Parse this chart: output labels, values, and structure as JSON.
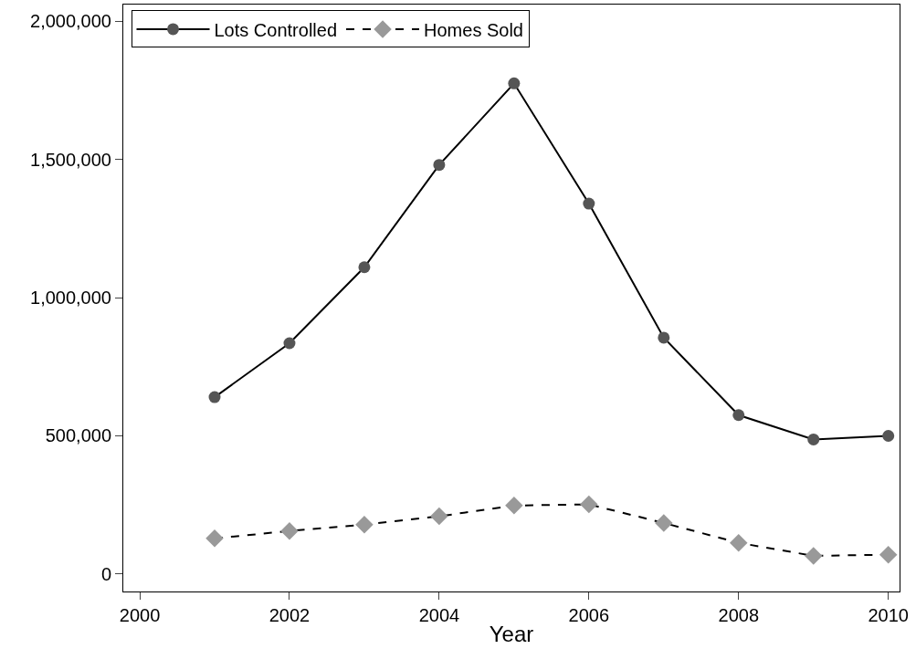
{
  "chart_data": {
    "type": "line",
    "xlabel": "Year",
    "x": [
      2001,
      2002,
      2003,
      2004,
      2005,
      2006,
      2007,
      2008,
      2009,
      2010
    ],
    "series": [
      {
        "name": "Lots Controlled",
        "color": "#555555",
        "marker": "circle",
        "line_style": "solid",
        "values": [
          640000,
          835000,
          1110000,
          1480000,
          1775000,
          1340000,
          855000,
          575000,
          487000,
          500000
        ]
      },
      {
        "name": "Homes Sold",
        "color": "#999999",
        "marker": "diamond",
        "line_style": "dashed",
        "values": [
          129000,
          156000,
          179000,
          209000,
          248000,
          252000,
          185000,
          113000,
          66000,
          70000
        ]
      }
    ],
    "xlim": [
      1999.78,
      2010.15
    ],
    "xticks": [
      2000,
      2002,
      2004,
      2006,
      2008,
      2010
    ],
    "ylim": [
      -63000,
      2060000
    ],
    "yticks": [
      {
        "value": 0,
        "label": "0"
      },
      {
        "value": 500000,
        "label": "500,000"
      },
      {
        "value": 1000000,
        "label": "1,000,000"
      },
      {
        "value": 1500000,
        "label": "1,500,000"
      },
      {
        "value": 2000000,
        "label": "2,000,000"
      }
    ],
    "grid": false,
    "legend": "top left"
  }
}
